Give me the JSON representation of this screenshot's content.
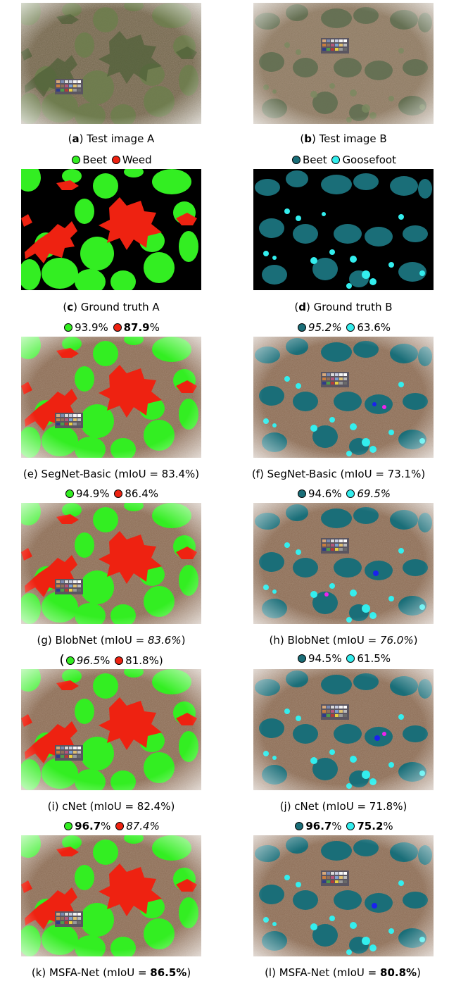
{
  "colors": {
    "beet_a": "#33ee22",
    "weed": "#ee2211",
    "beet_b": "#1a6e78",
    "goosefoot": "#33eeee",
    "soil": "#8a6a52",
    "background_gt": "#000000"
  },
  "panels": {
    "a": {
      "caption_letter": "a",
      "caption_text": "Test image A"
    },
    "b": {
      "caption_letter": "b",
      "caption_text": "Test image B"
    },
    "c": {
      "caption_letter": "c",
      "caption_text": "Ground truth A"
    },
    "d": {
      "caption_letter": "d",
      "caption_text": "Ground truth B"
    },
    "e": {
      "caption": "(e) SegNet-Basic (mIoU = 83.4%)"
    },
    "f": {
      "caption": "(f) SegNet-Basic (mIoU = 73.1%)"
    },
    "g": {
      "caption_prefix": "(g) BlobNet (mIoU = ",
      "caption_value": "83.6%",
      "caption_suffix": ")"
    },
    "h": {
      "caption_prefix": "(h) BlobNet (mIoU = ",
      "caption_value": "76.0%",
      "caption_suffix": ")"
    },
    "i": {
      "caption": "(i) cNet (mIoU = 82.4%)"
    },
    "j": {
      "caption": "(j) cNet (mIoU = 71.8%)"
    },
    "k": {
      "caption_prefix": "(k) MSFA-Net (mIoU = ",
      "caption_value": "86.5%",
      "caption_suffix": ")"
    },
    "l": {
      "caption_prefix": "(l) MSFA-Net (mIoU = ",
      "caption_value": "80.8%",
      "caption_suffix": ")"
    }
  },
  "legend": {
    "a_beet": "Beet",
    "a_weed": "Weed",
    "b_beet": "Beet",
    "b_goosefoot": "Goosefoot"
  },
  "scores": {
    "segnet_a_beet": "93.9%",
    "segnet_a_weed": "87.9",
    "segnet_b_beet": "95.2%",
    "segnet_b_goose": "63.6%",
    "blobnet_a_beet": "94.9%",
    "blobnet_a_weed": "86.4%",
    "blobnet_b_beet": "94.6%",
    "blobnet_b_goose": "69.5%",
    "cnet_a_open": "(",
    "cnet_a_beet": "96.5",
    "cnet_a_weed": "81.8%)",
    "cnet_b_beet": "94.5%",
    "cnet_b_goose": "61.5%",
    "msfa_a_beet": "96.7",
    "msfa_a_weed": "87.4%",
    "msfa_b_beet": "96.7",
    "msfa_b_goose": "75.2"
  }
}
